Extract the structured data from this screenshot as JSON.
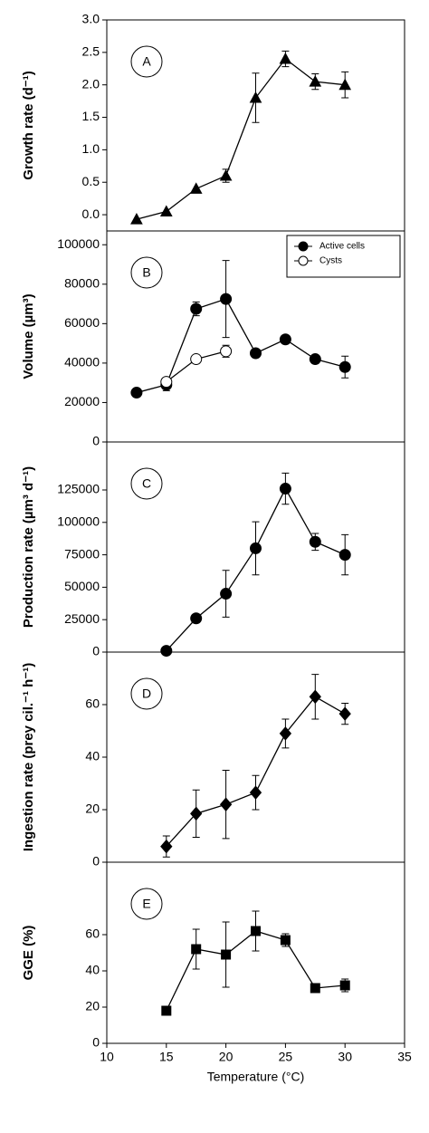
{
  "chart_data": [
    {
      "type": "line",
      "panel_label": "A",
      "ylabel": "Growth rate (d⁻¹)",
      "xlim": [
        10,
        35
      ],
      "ylim": [
        -0.25,
        3.0
      ],
      "yticks": [
        {
          "value": 0,
          "label": "0.0"
        },
        {
          "value": 0.5,
          "label": "0.5"
        },
        {
          "value": 1,
          "label": "1.0"
        },
        {
          "value": 1.5,
          "label": "1.5"
        },
        {
          "value": 2,
          "label": "2.0"
        },
        {
          "value": 2.5,
          "label": "2.5"
        },
        {
          "value": 3,
          "label": "3.0"
        }
      ],
      "series": [
        {
          "color": "#000000",
          "marker": "triangle",
          "x": [
            12.5,
            15,
            17.5,
            20,
            22.5,
            25,
            27.5,
            30
          ],
          "values": [
            -0.07,
            0.05,
            0.4,
            0.6,
            1.8,
            2.4,
            2.05,
            2.0
          ],
          "errors": [
            null,
            null,
            null,
            0.1,
            0.38,
            0.12,
            0.12,
            0.2
          ]
        }
      ]
    },
    {
      "type": "line",
      "panel_label": "B",
      "ylabel": "Volume (µm³)",
      "xlim": [
        10,
        35
      ],
      "ylim": [
        0,
        107000
      ],
      "yticks": [
        0,
        20000,
        40000,
        60000,
        80000,
        100000
      ],
      "legend": "top-right",
      "series": [
        {
          "name": "Active cells",
          "color": "#000000",
          "marker": "circle",
          "x": [
            12.5,
            15,
            17.5,
            20,
            22.5,
            25,
            27.5,
            30
          ],
          "values": [
            25000,
            29000,
            67500,
            72500,
            45000,
            52000,
            42000,
            38000
          ],
          "errors": [
            1000,
            3000,
            3500,
            19500,
            null,
            2000,
            2000,
            5500
          ]
        },
        {
          "name": "Cysts",
          "color": "#000000",
          "marker": "circle-open",
          "x": [
            15,
            17.5,
            20
          ],
          "values": [
            30500,
            42000,
            46000
          ],
          "errors": [
            2000,
            null,
            3000
          ]
        }
      ]
    },
    {
      "type": "line",
      "panel_label": "C",
      "ylabel": "Production rate (µm³ d⁻¹)",
      "xlim": [
        10,
        35
      ],
      "ylim": [
        0,
        162000
      ],
      "yticks": [
        0,
        25000,
        50000,
        75000,
        100000,
        125000
      ],
      "series": [
        {
          "color": "#000000",
          "marker": "circle",
          "x": [
            15,
            17.5,
            20,
            22.5,
            25,
            27.5,
            30
          ],
          "values": [
            1000,
            26000,
            45000,
            80000,
            126000,
            85000,
            75000
          ],
          "errors": [
            null,
            null,
            18000,
            20500,
            12000,
            6500,
            15500
          ]
        }
      ]
    },
    {
      "type": "line",
      "panel_label": "D",
      "ylabel": "Ingestion rate (prey cil.⁻¹ h⁻¹)",
      "xlim": [
        10,
        35
      ],
      "ylim": [
        0,
        80
      ],
      "yticks": [
        0,
        20,
        40,
        60
      ],
      "series": [
        {
          "color": "#000000",
          "marker": "diamond",
          "x": [
            15,
            17.5,
            20,
            22.5,
            25,
            27.5,
            30
          ],
          "values": [
            6,
            18.5,
            22,
            26.5,
            49,
            63,
            56.5
          ],
          "errors": [
            4,
            9,
            13,
            6.5,
            5.5,
            8.5,
            4
          ]
        }
      ]
    },
    {
      "type": "line",
      "panel_label": "E",
      "ylabel": "GGE (%)",
      "xlabel": "Temperature (°C)",
      "xlim": [
        10,
        35
      ],
      "ylim": [
        0,
        100
      ],
      "xticks": [
        10,
        15,
        20,
        25,
        30,
        35
      ],
      "yticks": [
        0,
        20,
        40,
        60
      ],
      "series": [
        {
          "color": "#000000",
          "marker": "square",
          "x": [
            15,
            17.5,
            20,
            22.5,
            25,
            27.5,
            30
          ],
          "values": [
            18,
            52,
            49,
            62,
            57,
            30.5,
            32
          ],
          "errors": [
            null,
            11,
            18,
            11,
            3.5,
            2,
            3.5
          ]
        }
      ]
    }
  ]
}
